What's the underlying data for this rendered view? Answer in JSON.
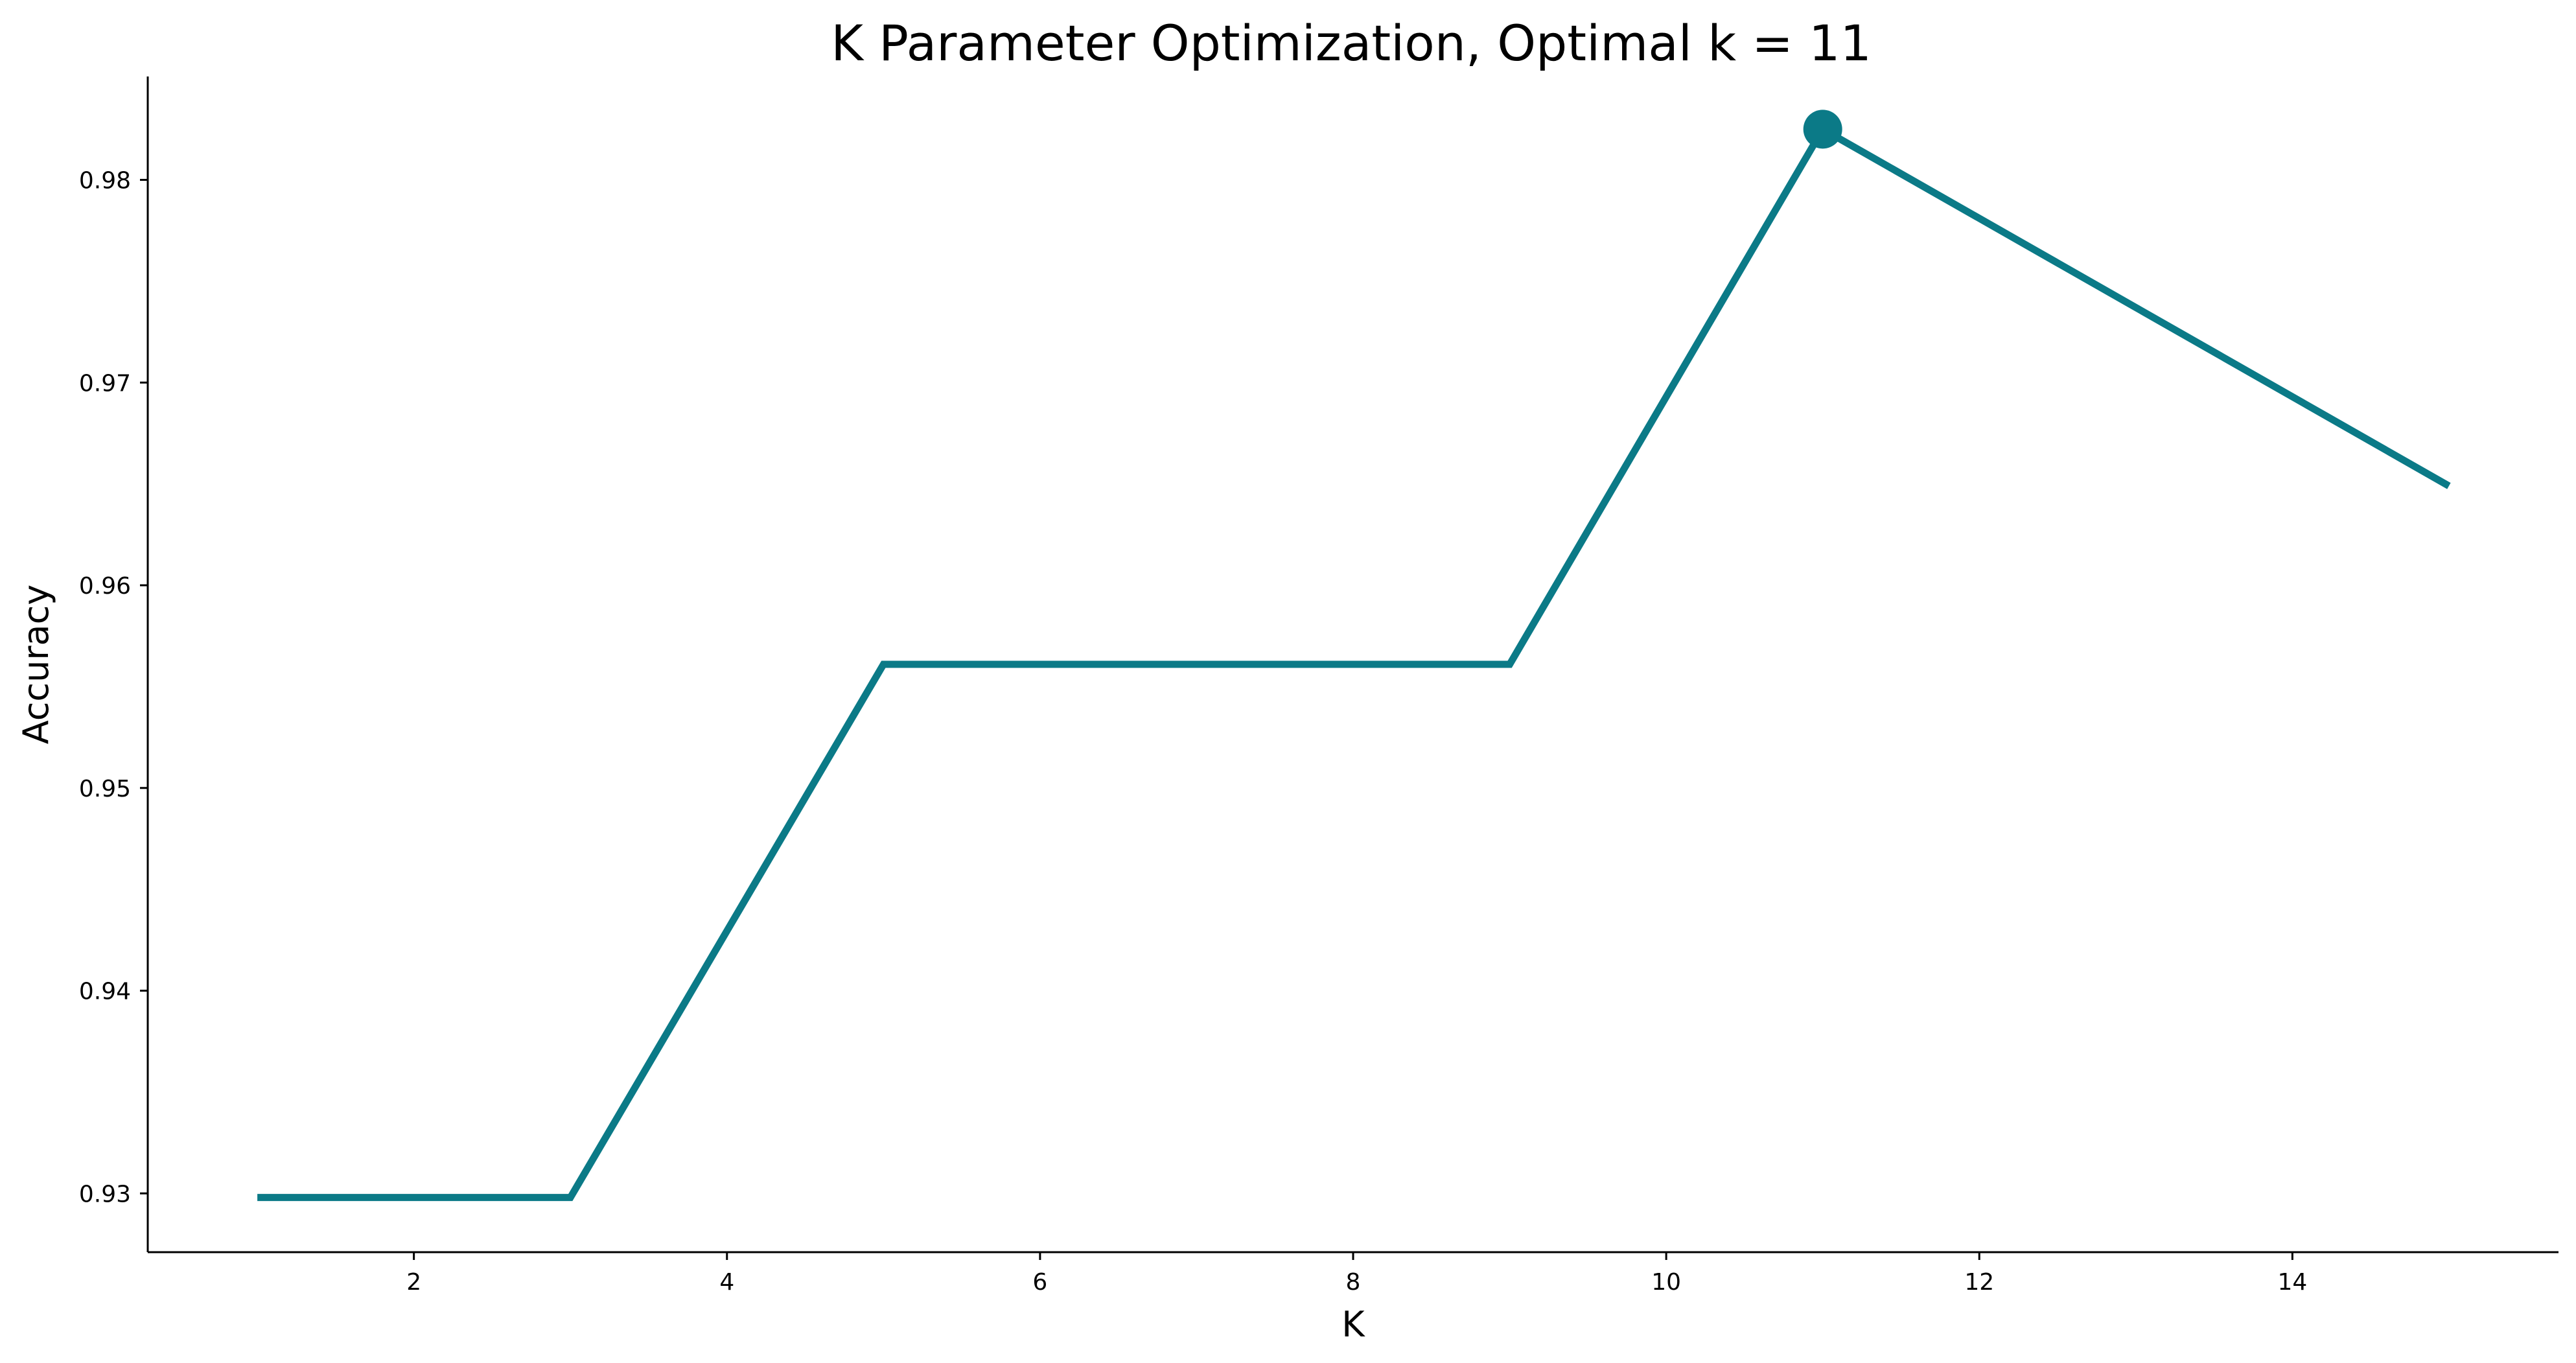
{
  "chart_data": {
    "type": "line",
    "title": "K Parameter Optimization, Optimal k = 11",
    "xlabel": "K",
    "ylabel": "Accuracy",
    "x": [
      1,
      3,
      5,
      7,
      9,
      11,
      13,
      15
    ],
    "series": [
      {
        "values": [
          0.9298,
          0.9298,
          0.9561,
          0.9561,
          0.9561,
          0.9825,
          0.9737,
          0.9649
        ]
      }
    ],
    "highlight": {
      "x": 11,
      "y": 0.9825
    },
    "xlim": [
      0.3,
      15.7
    ],
    "ylim": [
      0.9271,
      0.9851
    ],
    "xticks": [
      2,
      4,
      6,
      8,
      10,
      12,
      14
    ],
    "yticks": [
      0.93,
      0.94,
      0.95,
      0.96,
      0.97,
      0.98
    ],
    "grid": false,
    "line_color": "#0b7a87"
  }
}
